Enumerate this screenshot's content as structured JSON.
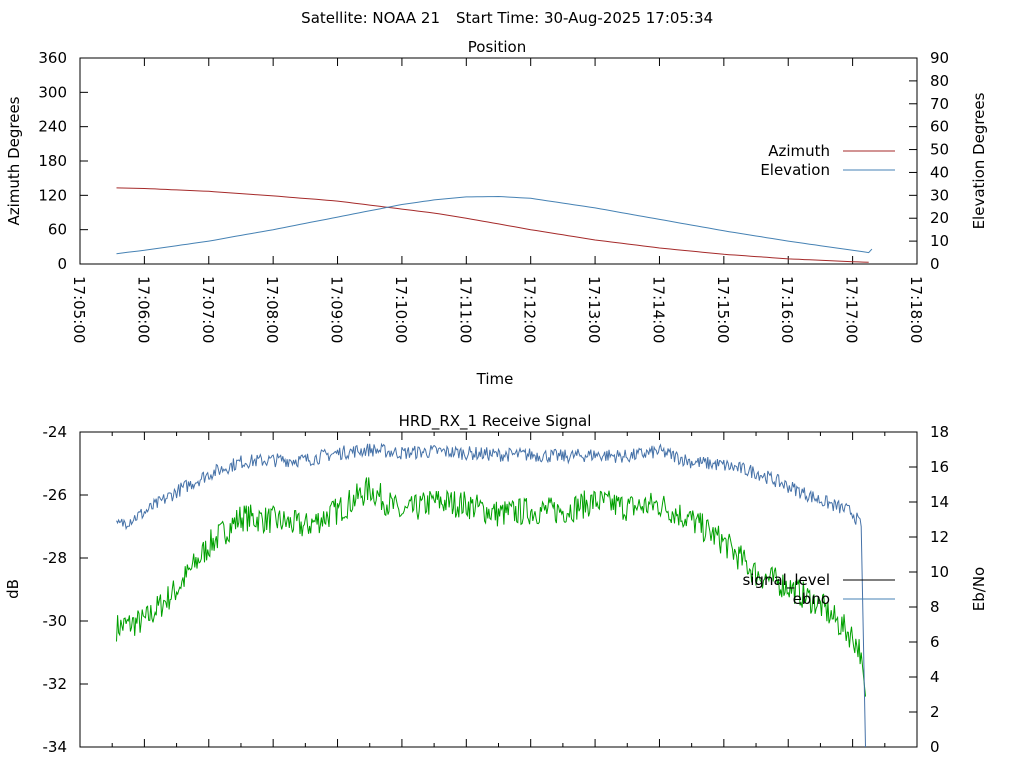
{
  "header": {
    "satellite_label": "Satellite: NOAA 21",
    "start_time_label": "Start Time: 30-Aug-2025 17:05:34"
  },
  "chart_data": [
    {
      "type": "line",
      "title": "Position",
      "xlabel": "Time",
      "ylabel": "Azimuth Degrees",
      "y2label": "Elevation Degrees",
      "xlim": [
        "17:05:00",
        "17:18:00"
      ],
      "ylim": [
        0,
        360
      ],
      "y2lim": [
        0,
        90
      ],
      "xticks": [
        "17:05:00",
        "17:06:00",
        "17:07:00",
        "17:08:00",
        "17:09:00",
        "17:10:00",
        "17:11:00",
        "17:12:00",
        "17:13:00",
        "17:14:00",
        "17:15:00",
        "17:16:00",
        "17:17:00",
        "17:18:00"
      ],
      "yticks": [
        "0",
        "60",
        "120",
        "180",
        "240",
        "300",
        "360"
      ],
      "y2ticks": [
        "0",
        "10",
        "20",
        "30",
        "40",
        "50",
        "60",
        "70",
        "80",
        "90"
      ],
      "legend": "right",
      "grid": false,
      "series": [
        {
          "name": "Azimuth",
          "axis": "left",
          "color": "#a52a2a",
          "x": [
            "17:05:34",
            "17:06:00",
            "17:07:00",
            "17:08:00",
            "17:09:00",
            "17:10:00",
            "17:10:30",
            "17:11:00",
            "17:12:00",
            "17:13:00",
            "17:14:00",
            "17:15:00",
            "17:16:00",
            "17:17:00",
            "17:17:15"
          ],
          "y": [
            133,
            132,
            127,
            119,
            110,
            96,
            89,
            80,
            60,
            42,
            28,
            17,
            9,
            4,
            3
          ]
        },
        {
          "name": "Elevation",
          "axis": "right",
          "color": "#4682b4",
          "x": [
            "17:05:34",
            "17:06:00",
            "17:07:00",
            "17:08:00",
            "17:09:00",
            "17:10:00",
            "17:10:30",
            "17:11:00",
            "17:11:30",
            "17:12:00",
            "17:13:00",
            "17:14:00",
            "17:15:00",
            "17:16:00",
            "17:17:00",
            "17:17:15",
            "17:17:18"
          ],
          "y": [
            4.5,
            6,
            10,
            15,
            20.5,
            26,
            28,
            29.3,
            29.5,
            28.7,
            24.5,
            19.5,
            14.5,
            10,
            6,
            5,
            6.5
          ]
        }
      ]
    },
    {
      "type": "line",
      "title": "HRD_RX_1 Receive Signal",
      "ylabel": "dB",
      "y2label": "Eb/No",
      "xlim": [
        "17:05:00",
        "17:18:00"
      ],
      "ylim": [
        -34,
        -24
      ],
      "y2lim": [
        0,
        18
      ],
      "yticks": [
        "-24",
        "-26",
        "-28",
        "-30",
        "-32",
        "-34"
      ],
      "y2ticks": [
        "0",
        "2",
        "4",
        "6",
        "8",
        "10",
        "12",
        "14",
        "16",
        "18"
      ],
      "legend": "right",
      "grid": false,
      "series": [
        {
          "name": "signal_level",
          "axis": "left",
          "color": "#00a000",
          "x": [
            "17:05:34",
            "17:06:00",
            "17:06:30",
            "17:07:00",
            "17:07:30",
            "17:08:00",
            "17:08:30",
            "17:09:00",
            "17:09:30",
            "17:10:00",
            "17:10:30",
            "17:11:00",
            "17:11:30",
            "17:12:00",
            "17:12:30",
            "17:13:00",
            "17:13:30",
            "17:14:00",
            "17:14:30",
            "17:15:00",
            "17:15:30",
            "17:16:00",
            "17:16:30",
            "17:17:00",
            "17:17:08",
            "17:17:12"
          ],
          "y": [
            -30.2,
            -30.0,
            -29.0,
            -27.6,
            -26.7,
            -26.8,
            -27.0,
            -26.5,
            -25.8,
            -26.6,
            -26.2,
            -26.3,
            -26.6,
            -26.5,
            -26.5,
            -26.2,
            -26.4,
            -26.3,
            -26.8,
            -27.5,
            -28.5,
            -28.9,
            -29.5,
            -30.5,
            -31.0,
            -32.4
          ]
        },
        {
          "name": "ebno",
          "axis": "right",
          "color": "#4672a8",
          "x": [
            "17:05:34",
            "17:06:00",
            "17:06:30",
            "17:07:00",
            "17:07:30",
            "17:08:00",
            "17:08:30",
            "17:09:00",
            "17:09:30",
            "17:10:00",
            "17:10:30",
            "17:11:00",
            "17:11:30",
            "17:12:00",
            "17:12:30",
            "17:13:00",
            "17:13:30",
            "17:14:00",
            "17:14:30",
            "17:15:00",
            "17:15:30",
            "17:16:00",
            "17:16:30",
            "17:17:00",
            "17:17:08",
            "17:17:12"
          ],
          "y": [
            12.6,
            13.4,
            14.6,
            15.6,
            16.3,
            16.4,
            16.4,
            16.8,
            17.0,
            16.8,
            16.9,
            16.8,
            16.7,
            16.7,
            16.6,
            16.7,
            16.6,
            16.9,
            16.3,
            16.1,
            15.7,
            14.9,
            14.1,
            13.4,
            12.6,
            0
          ]
        }
      ]
    }
  ]
}
